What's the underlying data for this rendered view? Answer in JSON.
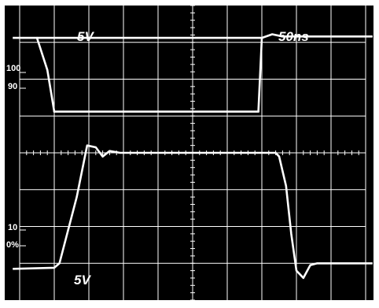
{
  "chart_data": {
    "type": "line",
    "title": "",
    "grid": true,
    "divisions": {
      "x": 10,
      "y": 8
    },
    "xlim": [
      0,
      10
    ],
    "ylim": [
      -4,
      4
    ],
    "labels": {
      "top_channel_scale": "5V",
      "timebase": "50ns",
      "bottom_channel_scale": "5V",
      "marker_100": "100",
      "marker_90": "90",
      "marker_10": "10",
      "marker_0": "0%"
    },
    "series": [
      {
        "x": [
          -0.2,
          0.5,
          6.9,
          7.0,
          7.3,
          7.6,
          10.2
        ],
        "y": [
          3.12,
          3.12,
          3.12,
          3.12,
          3.22,
          3.16,
          3.16
        ],
        "style": {
          "color": "#ffffff"
        },
        "draw": {
          "segments": [
            [
              0.5,
              3.12,
              0.8,
              2.25
            ],
            [
              0.8,
              2.25,
              1.0,
              1.12
            ],
            [
              1.0,
              1.12,
              6.9,
              1.12
            ],
            [
              6.9,
              1.12,
              7.0,
              3.12
            ]
          ]
        }
      },
      {
        "x": [
          -0.2,
          1.0,
          1.15,
          1.65,
          1.95,
          2.2,
          2.4,
          2.6,
          2.9,
          7.4,
          7.5,
          7.7,
          7.85,
          8.0,
          8.2,
          8.4,
          8.6,
          10.2
        ],
        "y": [
          -3.15,
          -3.12,
          -3.0,
          -1.2,
          0.2,
          0.15,
          -0.1,
          0.05,
          0.0,
          0.0,
          -0.1,
          -0.9,
          -2.2,
          -3.2,
          -3.4,
          -3.05,
          -3.0,
          -3.0
        ]
      }
    ]
  }
}
